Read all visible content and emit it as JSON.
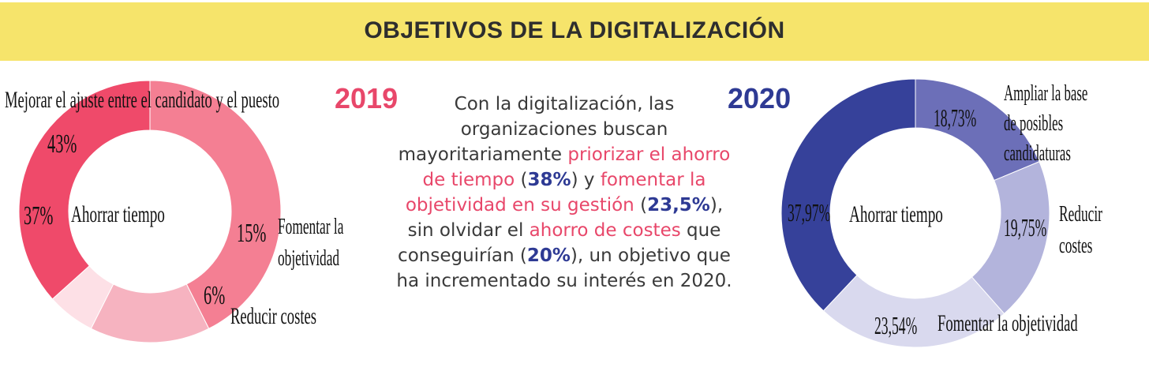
{
  "title": "OBJETIVOS DE LA DIGITALIZACIÓN",
  "colors": {
    "banner": "#f6e46b",
    "accent_2019": "#e8476a",
    "accent_2020": "#2e3a94"
  },
  "chart_data": [
    {
      "type": "pie",
      "variant": "donut",
      "title": "2019",
      "categories": [
        "Mejorar el ajuste entre el candidato y el puesto",
        "Fomentar la objetividad",
        "Reducir costes",
        "Ahorrar tiempo"
      ],
      "values": [
        43,
        15,
        6,
        37
      ],
      "value_labels": [
        "43%",
        "15%",
        "6%",
        "37%"
      ],
      "colors": [
        "#f47f93",
        "#f6b3c0",
        "#fde0e6",
        "#ef4a6a"
      ]
    },
    {
      "type": "pie",
      "variant": "donut",
      "title": "2020",
      "categories": [
        "Ampliar la base de posibles candidaturas",
        "Reducir costes",
        "Fomentar la objetividad",
        "Ahorrar tiempo"
      ],
      "values": [
        18.73,
        19.75,
        23.54,
        37.97
      ],
      "value_labels": [
        "18,73%",
        "19,75%",
        "23,54%",
        "37,97%"
      ],
      "colors": [
        "#6c6fb8",
        "#b3b4dc",
        "#d9d9ee",
        "#36419a"
      ]
    }
  ],
  "summary": {
    "p1": "Con la digitalización, las organizaciones buscan mayoritariamente",
    "h1": "priorizar el ahorro de tiempo",
    "v1": "38%",
    "p2": "y",
    "h2": "fomentar la objetividad en su gestión",
    "v2": "23,5%",
    "p3": ", sin olvidar el",
    "h3": "ahorro de costes",
    "p4": "que conseguirían",
    "v3": "20%",
    "p5": ", un objetivo que ha incrementado su interés en 2020."
  }
}
